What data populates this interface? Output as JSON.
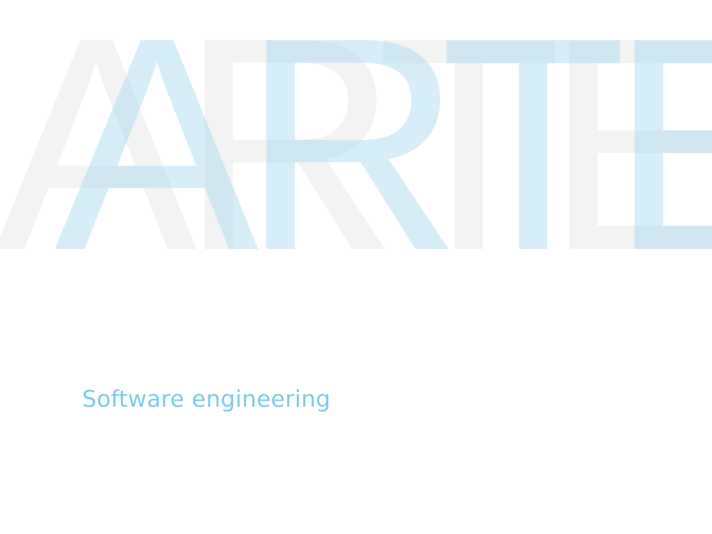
{
  "hero": {
    "backdrop_text": "ARTE",
    "overlay_text": "ARTE",
    "tagline": "Software engineering"
  },
  "colors": {
    "background": "#ffffff",
    "backdrop_grey": "#f3f3f3",
    "overlay_blue": "#a0d7f0",
    "tagline_blue": "#7dcbee"
  }
}
